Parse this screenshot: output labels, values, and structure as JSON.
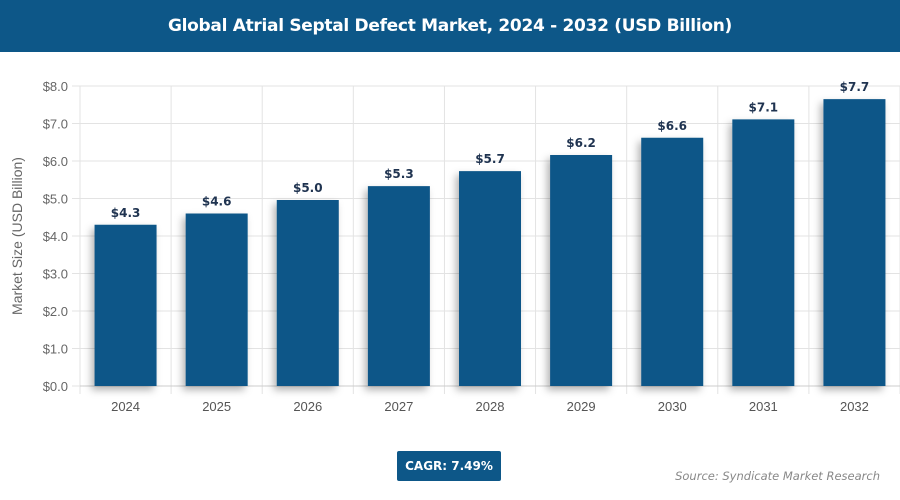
{
  "header": {
    "title": "Global Atrial Septal Defect Market, 2024 - 2032 (USD Billion)"
  },
  "chart_data": {
    "type": "bar",
    "categories": [
      "2024",
      "2025",
      "2026",
      "2027",
      "2028",
      "2029",
      "2030",
      "2031",
      "2032"
    ],
    "values": [
      4.3,
      4.6,
      4.96,
      5.33,
      5.73,
      6.16,
      6.62,
      7.11,
      7.65
    ],
    "data_labels": [
      "$4.3",
      "$4.6",
      "$5.0",
      "$5.3",
      "$5.7",
      "$6.2",
      "$6.6",
      "$7.1",
      "$7.7"
    ],
    "ylabel": "Market Size (USD Billion)",
    "ylim": [
      0,
      8
    ],
    "yticks": [
      "$0.0",
      "$1.0",
      "$2.0",
      "$3.0",
      "$4.0",
      "$5.0",
      "$6.0",
      "$7.0",
      "$8.0"
    ],
    "grid": true,
    "bar_color": "#0d5788"
  },
  "footer": {
    "cagr": "CAGR: 7.49%",
    "source": "Source: Syndicate Market Research"
  }
}
